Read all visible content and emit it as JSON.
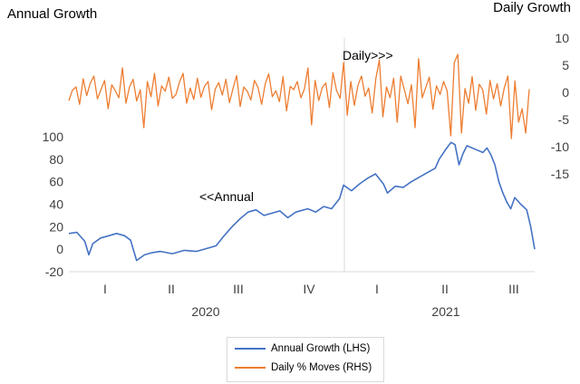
{
  "chart_data": {
    "type": "line",
    "left_title": "Annual Growth",
    "right_title": "Daily Growth",
    "x_groups": [
      {
        "year": "2020",
        "quarters": [
          "I",
          "II",
          "III",
          "IV"
        ]
      },
      {
        "year": "2021",
        "quarters": [
          "I",
          "II",
          "III"
        ]
      }
    ],
    "left_axis": {
      "ticks": [
        "100",
        "80",
        "60",
        "40",
        "20",
        "0",
        "-20"
      ],
      "ylim": [
        -20,
        100
      ]
    },
    "right_axis": {
      "ticks": [
        "10",
        "5",
        "0",
        "-5",
        "-10",
        "-15"
      ],
      "ylim": [
        -15,
        10
      ]
    },
    "annotations": {
      "daily": "Daily>>>",
      "annual": "<<Annual"
    },
    "series": [
      {
        "name": "Annual Growth (LHS)",
        "axis": "left",
        "color": "#4472c4",
        "x_start": "2020-01-01",
        "x_end": "2021-09-10",
        "points": [
          [
            0.0,
            14
          ],
          [
            0.02,
            15
          ],
          [
            0.04,
            7
          ],
          [
            0.05,
            -5
          ],
          [
            0.06,
            5
          ],
          [
            0.08,
            10
          ],
          [
            0.1,
            12
          ],
          [
            0.12,
            14
          ],
          [
            0.14,
            12
          ],
          [
            0.155,
            8
          ],
          [
            0.17,
            -10
          ],
          [
            0.19,
            -5
          ],
          [
            0.21,
            -3
          ],
          [
            0.23,
            -2
          ],
          [
            0.26,
            -4
          ],
          [
            0.29,
            -1
          ],
          [
            0.32,
            -2
          ],
          [
            0.35,
            1
          ],
          [
            0.37,
            3
          ],
          [
            0.39,
            12
          ],
          [
            0.41,
            20
          ],
          [
            0.43,
            27
          ],
          [
            0.45,
            33
          ],
          [
            0.47,
            35
          ],
          [
            0.49,
            30
          ],
          [
            0.51,
            32
          ],
          [
            0.53,
            34
          ],
          [
            0.55,
            28
          ],
          [
            0.57,
            33
          ],
          [
            0.6,
            36
          ],
          [
            0.62,
            33
          ],
          [
            0.64,
            38
          ],
          [
            0.66,
            36
          ],
          [
            0.68,
            45
          ],
          [
            0.69,
            57
          ],
          [
            0.71,
            52
          ],
          [
            0.73,
            58
          ],
          [
            0.75,
            63
          ],
          [
            0.77,
            67
          ],
          [
            0.79,
            58
          ],
          [
            0.8,
            50
          ],
          [
            0.82,
            56
          ],
          [
            0.84,
            55
          ],
          [
            0.86,
            60
          ],
          [
            0.88,
            64
          ],
          [
            0.9,
            68
          ],
          [
            0.92,
            72
          ],
          [
            0.93,
            80
          ],
          [
            0.945,
            88
          ],
          [
            0.96,
            95
          ],
          [
            0.97,
            93
          ],
          [
            0.98,
            75
          ],
          [
            0.99,
            85
          ],
          [
            1.0,
            92
          ],
          [
            1.02,
            89
          ],
          [
            1.04,
            86
          ],
          [
            1.05,
            90
          ],
          [
            1.06,
            84
          ],
          [
            1.07,
            75
          ],
          [
            1.08,
            60
          ],
          [
            1.09,
            50
          ],
          [
            1.1,
            42
          ],
          [
            1.11,
            36
          ],
          [
            1.12,
            46
          ],
          [
            1.135,
            40
          ],
          [
            1.15,
            35
          ],
          [
            1.16,
            20
          ],
          [
            1.17,
            0
          ]
        ]
      },
      {
        "name": "Daily % Moves (RHS)",
        "axis": "right",
        "color": "#ed7d31",
        "x_start": "2020-01-01",
        "x_end": "2021-09-10",
        "values": [
          -1.5,
          0.4,
          1.0,
          -2.2,
          2.5,
          -0.6,
          1.7,
          3.0,
          -1.2,
          0.5,
          2.2,
          -3.0,
          1.4,
          0.3,
          -1.0,
          4.5,
          -2.0,
          1.0,
          2.4,
          -1.6,
          0.5,
          -6.5,
          2.0,
          -0.8,
          3.5,
          -2.5,
          1.2,
          0.2,
          2.8,
          -1.1,
          -0.4,
          1.9,
          3.5,
          -2.0,
          0.8,
          -1.3,
          2.6,
          -0.9,
          1.1,
          2.0,
          -3.2,
          0.6,
          1.8,
          -0.5,
          2.4,
          -1.9,
          0.7,
          3.1,
          -2.6,
          1.0,
          0.2,
          -1.4,
          2.2,
          0.9,
          -2.2,
          1.5,
          3.4,
          -0.8,
          0.3,
          -1.7,
          2.9,
          -3.4,
          1.1,
          0.5,
          2.0,
          -1.0,
          0.6,
          4.5,
          -6.0,
          2.2,
          -1.5,
          0.9,
          1.7,
          -2.8,
          3.6,
          0.4,
          -1.1,
          5.5,
          -4.2,
          2.0,
          -2.4,
          1.3,
          3.0,
          -0.7,
          0.8,
          -3.8,
          2.5,
          6.0,
          -4.5,
          1.0,
          -1.0,
          2.6,
          -5.5,
          3.0,
          0.5,
          -2.1,
          1.4,
          -6.5,
          6.2,
          -1.0,
          0.9,
          2.8,
          -3.1,
          1.2,
          -0.4,
          2.0,
          0.3,
          -8.0,
          5.5,
          7.0,
          -7.5,
          0.7,
          -2.0,
          2.9,
          -3.3,
          1.5,
          0.4,
          -4.0,
          2.2,
          -1.2,
          1.6,
          -2.5,
          0.8,
          3.0,
          -8.5,
          2.1,
          -5.5,
          -3.0,
          -7.5,
          0.6
        ]
      }
    ]
  },
  "legend": {
    "items": [
      {
        "label": "Annual Growth (LHS)",
        "color": "#4472c4"
      },
      {
        "label": "Daily % Moves (RHS)",
        "color": "#ed7d31"
      }
    ]
  }
}
